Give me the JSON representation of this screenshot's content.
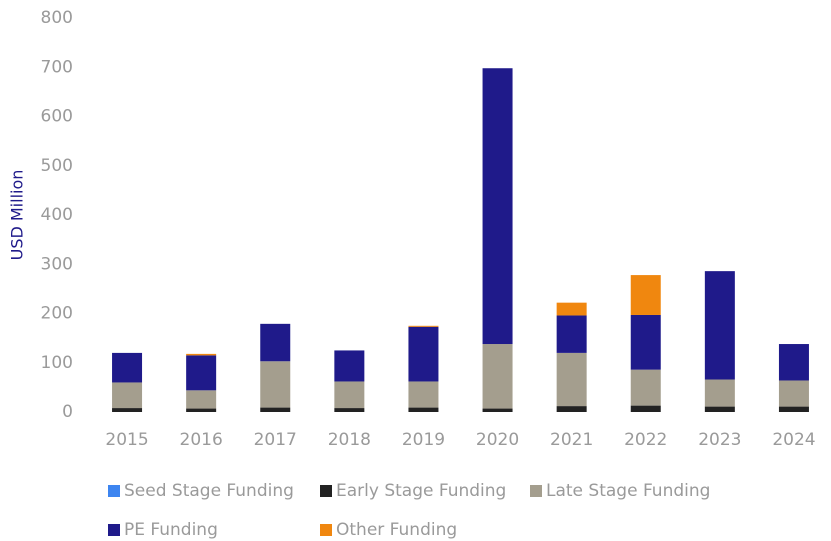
{
  "chart_data": {
    "type": "stacked_bar",
    "y_label": "USD Million",
    "categories": [
      "2015",
      "2016",
      "2017",
      "2018",
      "2019",
      "2020",
      "2021",
      "2022",
      "2023",
      "2024"
    ],
    "series": [
      {
        "name": "Seed Stage Funding",
        "color": "#3d85f0",
        "values": [
          0,
          0,
          0,
          0,
          0,
          0,
          0,
          0,
          0,
          0
        ]
      },
      {
        "name": "Early Stage Funding",
        "color": "#222222",
        "values": [
          8,
          7,
          9,
          8,
          9,
          7,
          12,
          13,
          11,
          11
        ]
      },
      {
        "name": "Late Stage Funding",
        "color": "#a49e8e",
        "values": [
          52,
          37,
          94,
          54,
          53,
          131,
          108,
          73,
          55,
          53
        ]
      },
      {
        "name": "PE Funding",
        "color": "#1f1a8a",
        "values": [
          60,
          71,
          76,
          63,
          111,
          560,
          76,
          111,
          220,
          74
        ]
      },
      {
        "name": "Other Funding",
        "color": "#f0870f",
        "values": [
          0,
          3,
          0,
          0,
          2,
          0,
          26,
          81,
          0,
          0
        ]
      }
    ],
    "ylim": [
      0,
      800
    ],
    "yticks": [
      0,
      100,
      200,
      300,
      400,
      500,
      600,
      700,
      800
    ]
  }
}
